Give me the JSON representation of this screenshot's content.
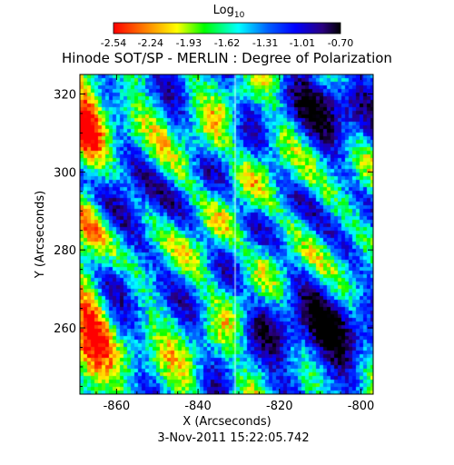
{
  "figure": {
    "colorbar_title_base": "Log",
    "colorbar_title_sub": "10",
    "colorbar_ticks": [
      "-2.54",
      "-2.24",
      "-1.93",
      "-1.62",
      "-1.31",
      "-1.01",
      "-0.70"
    ],
    "title": "Hinode SOT/SP - MERLIN : Degree of Polarization",
    "xlabel": "X (Arcseconds)",
    "ylabel": "Y (Arcseconds)",
    "timestamp": "3-Nov-2011 15:22:05.742"
  },
  "chart_data": {
    "type": "heatmap",
    "title": "Hinode SOT/SP - MERLIN : Degree of Polarization",
    "xlabel": "X (Arcseconds)",
    "ylabel": "Y (Arcseconds)",
    "xlim": [
      -869,
      -797
    ],
    "ylim": [
      243,
      325
    ],
    "x_ticks": [
      -860,
      -840,
      -820,
      -800
    ],
    "x_tick_labels": [
      "-860",
      "-840",
      "-820",
      "-800"
    ],
    "y_ticks": [
      260,
      280,
      300,
      320
    ],
    "y_tick_labels": [
      "260",
      "280",
      "300",
      "320"
    ],
    "colorbar": {
      "label": "Log10",
      "range": [
        -2.54,
        -0.7
      ],
      "ticks": [
        -2.54,
        -2.24,
        -1.93,
        -1.62,
        -1.31,
        -1.01,
        -0.7
      ],
      "tick_labels": [
        "-2.54",
        "-2.24",
        "-1.93",
        "-1.62",
        "-1.31",
        "-1.01",
        "-0.70"
      ],
      "colors": [
        "#ff0000",
        "#ff8000",
        "#ffff00",
        "#00ff00",
        "#00ffff",
        "#0060ff",
        "#0000ff",
        "#2a0080",
        "#000000"
      ]
    },
    "timestamp": "3-Nov-2011 15:22:05.742"
  }
}
